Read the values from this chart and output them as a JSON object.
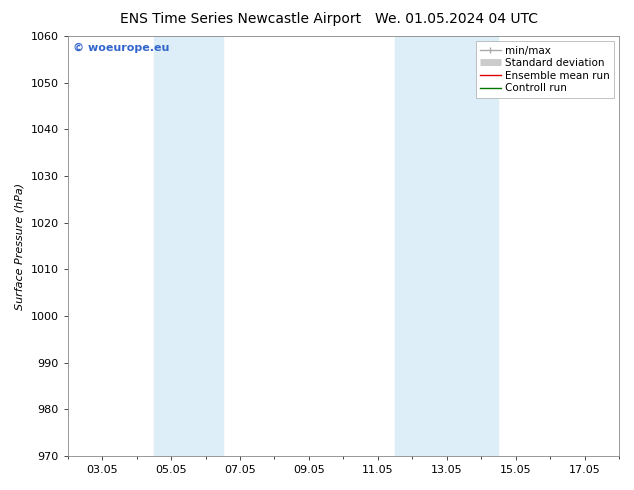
{
  "title_left": "ENS Time Series Newcastle Airport",
  "title_right": "We. 01.05.2024 04 UTC",
  "ylabel": "Surface Pressure (hPa)",
  "ylim": [
    970,
    1060
  ],
  "yticks": [
    970,
    980,
    990,
    1000,
    1010,
    1020,
    1030,
    1040,
    1050,
    1060
  ],
  "xlim_start": 0.0,
  "xlim_end": 16.0,
  "xtick_positions": [
    1,
    3,
    5,
    7,
    9,
    11,
    13,
    15
  ],
  "xtick_labels": [
    "03.05",
    "05.05",
    "07.05",
    "09.05",
    "11.05",
    "13.05",
    "15.05",
    "17.05"
  ],
  "shaded_bands": [
    {
      "xmin": 2.5,
      "xmax": 4.5,
      "color": "#ddeef8"
    },
    {
      "xmin": 9.5,
      "xmax": 12.5,
      "color": "#ddeef8"
    }
  ],
  "watermark": "© woeurope.eu",
  "watermark_color": "#3366cc",
  "background_color": "#ffffff",
  "plot_bg_color": "#ffffff",
  "legend_entries": [
    {
      "label": "min/max",
      "color": "#aaaaaa",
      "lw": 1.0
    },
    {
      "label": "Standard deviation",
      "color": "#cccccc",
      "lw": 5
    },
    {
      "label": "Ensemble mean run",
      "color": "#dd0000",
      "lw": 1.0
    },
    {
      "label": "Controll run",
      "color": "#007700",
      "lw": 1.0
    }
  ],
  "title_fontsize": 10,
  "axis_fontsize": 8,
  "tick_fontsize": 8,
  "legend_fontsize": 7.5
}
